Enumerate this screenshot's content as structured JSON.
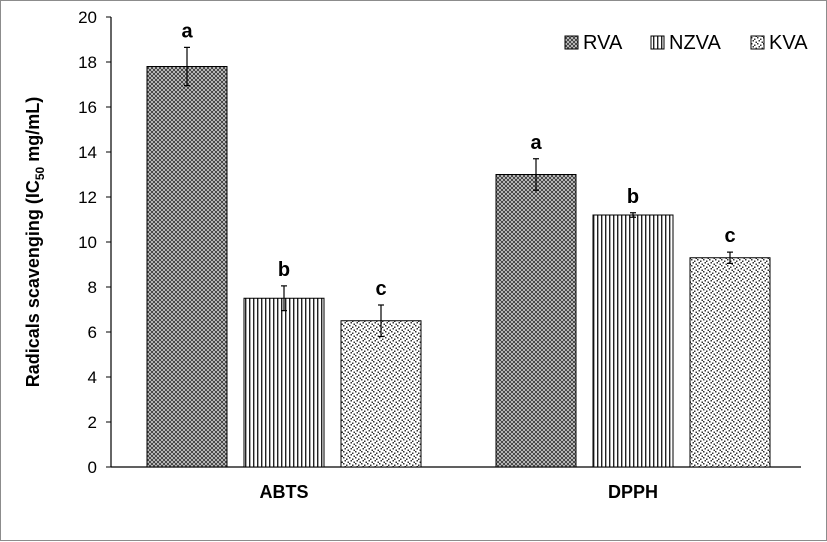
{
  "chart_data": {
    "type": "bar",
    "categories": [
      "ABTS",
      "DPPH"
    ],
    "ylabel": {
      "prefix": "Radicals scavenging (IC",
      "sub": "50",
      "suffix": " mg/mL)"
    },
    "ylim": [
      0,
      20
    ],
    "yticks": [
      "0",
      "2",
      "4",
      "6",
      "8",
      "10",
      "12",
      "14",
      "16",
      "18",
      "20"
    ],
    "grid": false,
    "legend_position": "top-right",
    "series": [
      {
        "name": "RVA",
        "values": [
          17.8,
          13.0
        ],
        "errors": [
          0.85,
          0.7
        ],
        "labels": [
          "a",
          "a"
        ],
        "pattern": "checker"
      },
      {
        "name": "NZVA",
        "values": [
          7.5,
          11.2
        ],
        "errors": [
          0.55,
          0.1
        ],
        "labels": [
          "b",
          "b"
        ],
        "pattern": "vertical-lines"
      },
      {
        "name": "KVA",
        "values": [
          6.5,
          9.3
        ],
        "errors": [
          0.7,
          0.25
        ],
        "labels": [
          "c",
          "c"
        ],
        "pattern": "dots"
      }
    ]
  }
}
